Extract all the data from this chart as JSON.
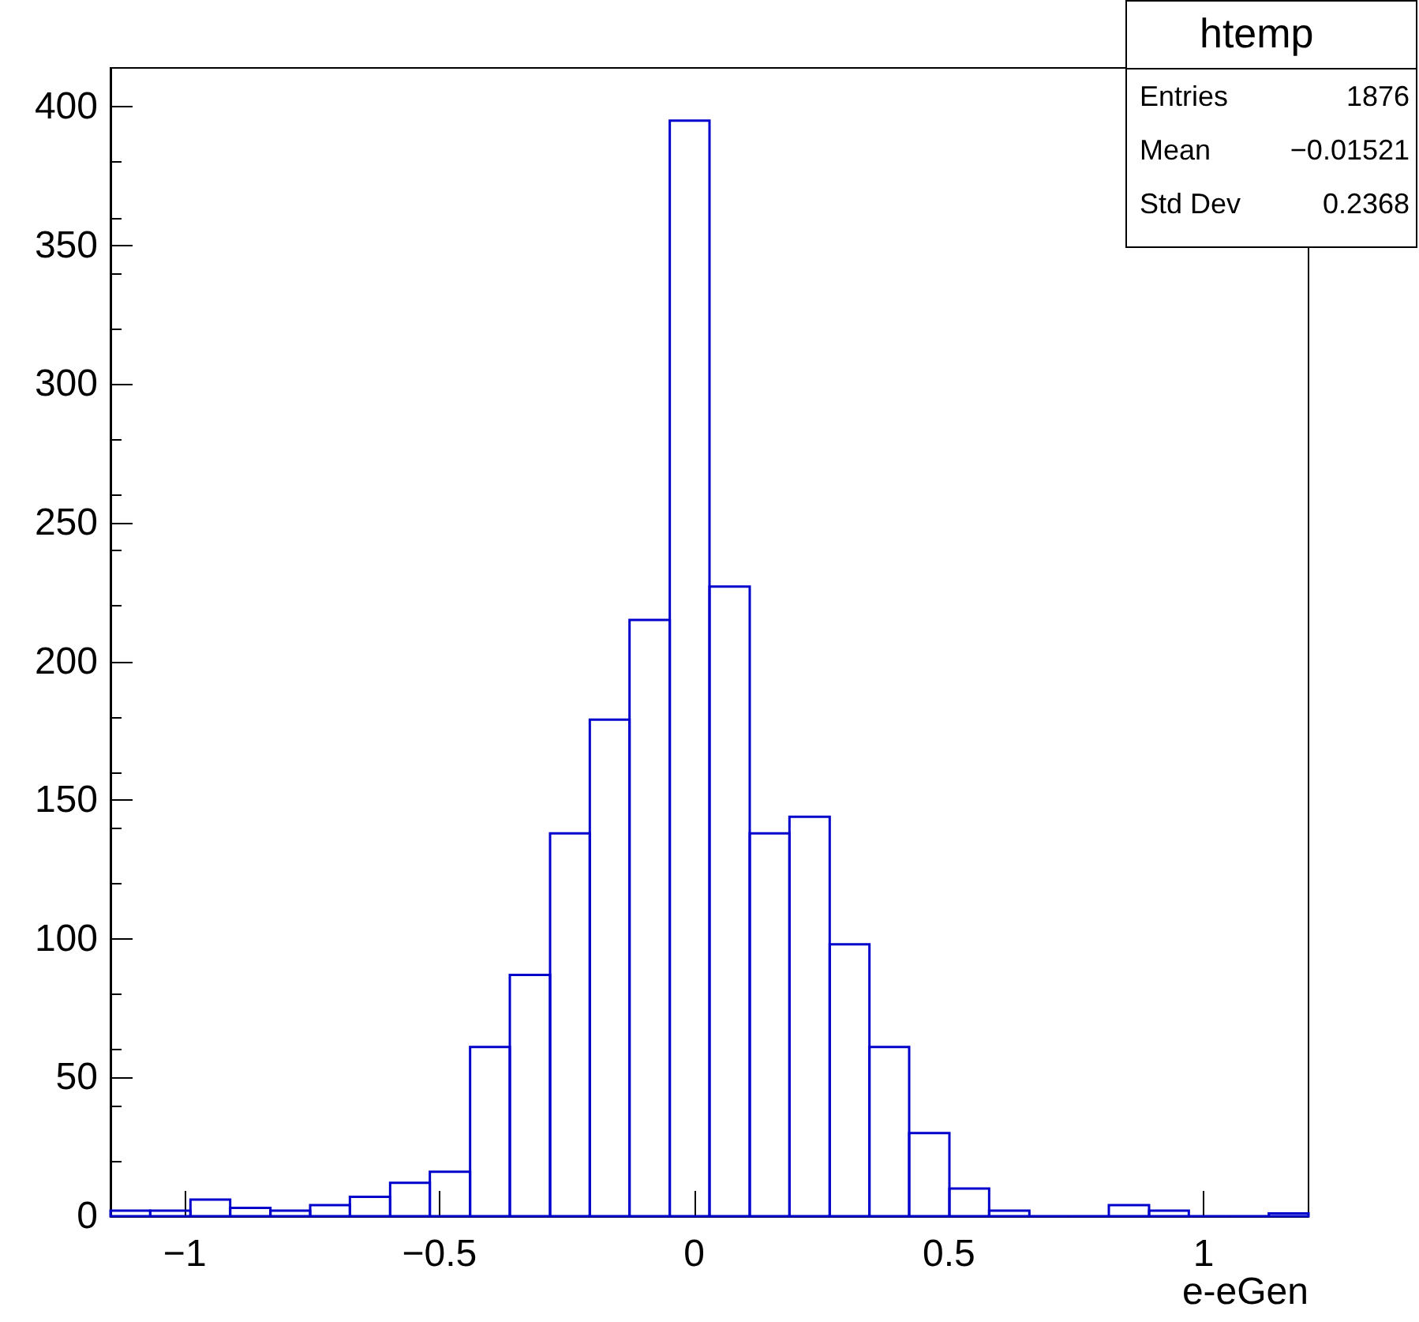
{
  "chart_data": {
    "type": "histogram",
    "title": "htemp",
    "xlabel": "e-eGen",
    "color": "#0000cc",
    "bins": [
      -1.146,
      -1.068,
      -0.989,
      -0.911,
      -0.832,
      -0.754,
      -0.676,
      -0.597,
      -0.519,
      -0.44,
      -0.362,
      -0.283,
      -0.205,
      -0.127,
      -0.048,
      0.03,
      0.109,
      0.187,
      0.266,
      0.344,
      0.422,
      0.501,
      0.579,
      0.658,
      0.736,
      0.814,
      0.893,
      0.971,
      1.05,
      1.128,
      1.206
    ],
    "values": [
      2,
      2,
      6,
      3,
      2,
      4,
      7,
      12,
      16,
      61,
      87,
      138,
      179,
      215,
      395,
      227,
      138,
      144,
      98,
      61,
      30,
      10,
      2,
      0,
      0,
      4,
      2,
      0,
      0,
      1
    ],
    "xlim": [
      -1.146,
      1.206
    ],
    "xticks": [
      -1,
      -0.5,
      0,
      0.5,
      1
    ],
    "ylim": [
      0,
      414
    ],
    "yticks": [
      0,
      50,
      100,
      150,
      200,
      250,
      300,
      350,
      400
    ],
    "grid": false,
    "annotations": [
      "Entries",
      "1876",
      "Mean",
      "−0.01521",
      "Std Dev",
      "0.2368"
    ]
  }
}
